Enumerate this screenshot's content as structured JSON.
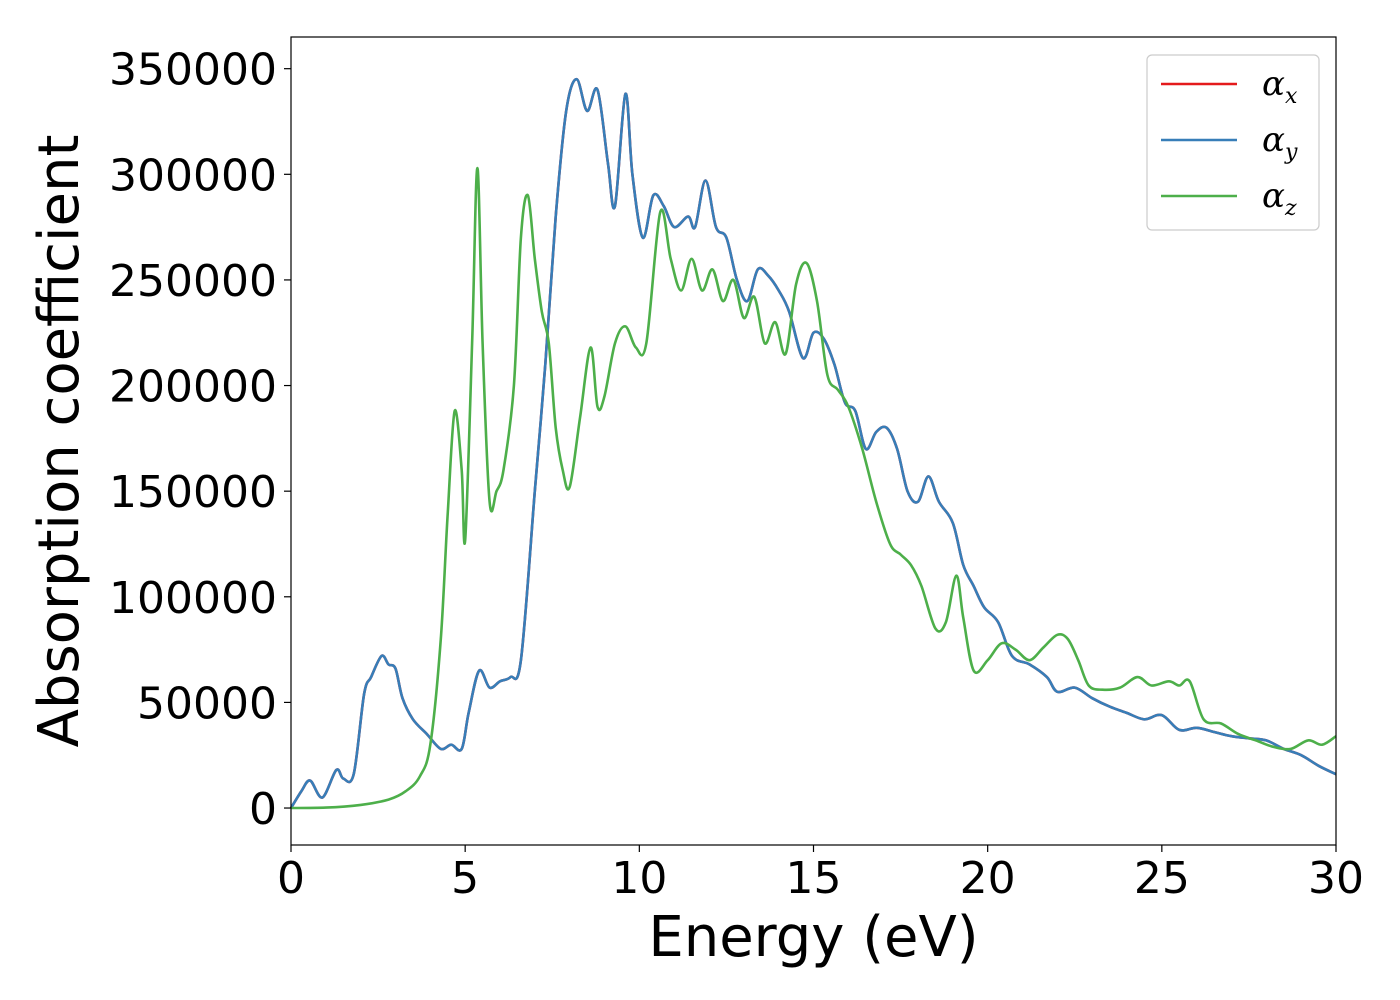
{
  "chart_data": {
    "type": "line",
    "title": "",
    "xlabel": "Energy (eV)",
    "ylabel": "Absorption coefficient",
    "xlim": [
      0,
      30
    ],
    "ylim": [
      -17500,
      365000
    ],
    "xticks": [
      0,
      5,
      10,
      15,
      20,
      25,
      30
    ],
    "yticks": [
      0,
      50000,
      100000,
      150000,
      200000,
      250000,
      300000,
      350000
    ],
    "grid": false,
    "legend_position": "top-right",
    "series": [
      {
        "name": "αx",
        "symbol": "α",
        "subscript": "x",
        "color": "#e41a1c",
        "x": [
          0,
          0.3,
          0.55,
          0.9,
          1.3,
          1.5,
          1.8,
          2.1,
          2.3,
          2.6,
          2.8,
          3.0,
          3.2,
          3.5,
          3.9,
          4.3,
          4.6,
          4.9,
          5.1,
          5.4,
          5.7,
          6.0,
          6.3,
          6.6,
          7.0,
          7.3,
          7.6,
          7.9,
          8.2,
          8.5,
          8.8,
          9.1,
          9.3,
          9.6,
          9.8,
          10.1,
          10.4,
          10.7,
          11.0,
          11.4,
          11.6,
          11.9,
          12.2,
          12.5,
          12.8,
          13.1,
          13.4,
          13.7,
          14.0,
          14.3,
          14.7,
          15.0,
          15.3,
          15.6,
          15.9,
          16.2,
          16.5,
          16.8,
          17.1,
          17.4,
          17.7,
          18.0,
          18.3,
          18.6,
          19.0,
          19.3,
          19.6,
          19.9,
          20.3,
          20.7,
          21.2,
          21.7,
          22.0,
          22.5,
          23.0,
          23.5,
          24.0,
          24.5,
          25.0,
          25.5,
          26.0,
          26.5,
          27.0,
          27.5,
          28.0,
          28.5,
          29.0,
          29.5,
          30.0
        ],
        "y": [
          0,
          8000,
          13000,
          5000,
          18000,
          14000,
          16000,
          54000,
          62000,
          72000,
          68000,
          66000,
          52000,
          42000,
          35000,
          28000,
          30000,
          28000,
          45000,
          65000,
          57000,
          60000,
          62000,
          70000,
          150000,
          210000,
          280000,
          330000,
          345000,
          330000,
          340000,
          305000,
          285000,
          338000,
          300000,
          270000,
          290000,
          285000,
          275000,
          280000,
          275000,
          297000,
          275000,
          270000,
          250000,
          240000,
          255000,
          252000,
          245000,
          235000,
          213000,
          225000,
          222000,
          210000,
          192000,
          188000,
          170000,
          178000,
          180000,
          170000,
          150000,
          145000,
          157000,
          145000,
          135000,
          115000,
          105000,
          95000,
          88000,
          72000,
          68000,
          62000,
          55000,
          57000,
          52000,
          48000,
          45000,
          42000,
          44000,
          37000,
          38000,
          36000,
          34000,
          33000,
          32000,
          28000,
          25000,
          20000,
          16000
        ]
      },
      {
        "name": "αy",
        "symbol": "α",
        "subscript": "y",
        "color": "#377eb8",
        "x": [
          0,
          0.3,
          0.55,
          0.9,
          1.3,
          1.5,
          1.8,
          2.1,
          2.3,
          2.6,
          2.8,
          3.0,
          3.2,
          3.5,
          3.9,
          4.3,
          4.6,
          4.9,
          5.1,
          5.4,
          5.7,
          6.0,
          6.3,
          6.6,
          7.0,
          7.3,
          7.6,
          7.9,
          8.2,
          8.5,
          8.8,
          9.1,
          9.3,
          9.6,
          9.8,
          10.1,
          10.4,
          10.7,
          11.0,
          11.4,
          11.6,
          11.9,
          12.2,
          12.5,
          12.8,
          13.1,
          13.4,
          13.7,
          14.0,
          14.3,
          14.7,
          15.0,
          15.3,
          15.6,
          15.9,
          16.2,
          16.5,
          16.8,
          17.1,
          17.4,
          17.7,
          18.0,
          18.3,
          18.6,
          19.0,
          19.3,
          19.6,
          19.9,
          20.3,
          20.7,
          21.2,
          21.7,
          22.0,
          22.5,
          23.0,
          23.5,
          24.0,
          24.5,
          25.0,
          25.5,
          26.0,
          26.5,
          27.0,
          27.5,
          28.0,
          28.5,
          29.0,
          29.5,
          30.0
        ],
        "y": [
          0,
          8000,
          13000,
          5000,
          18000,
          14000,
          16000,
          54000,
          62000,
          72000,
          68000,
          66000,
          52000,
          42000,
          35000,
          28000,
          30000,
          28000,
          45000,
          65000,
          57000,
          60000,
          62000,
          70000,
          150000,
          210000,
          280000,
          330000,
          345000,
          330000,
          340000,
          305000,
          285000,
          338000,
          300000,
          270000,
          290000,
          285000,
          275000,
          280000,
          275000,
          297000,
          275000,
          270000,
          250000,
          240000,
          255000,
          252000,
          245000,
          235000,
          213000,
          225000,
          222000,
          210000,
          192000,
          188000,
          170000,
          178000,
          180000,
          170000,
          150000,
          145000,
          157000,
          145000,
          135000,
          115000,
          105000,
          95000,
          88000,
          72000,
          68000,
          62000,
          55000,
          57000,
          52000,
          48000,
          45000,
          42000,
          44000,
          37000,
          38000,
          36000,
          34000,
          33000,
          32000,
          28000,
          25000,
          20000,
          16000
        ]
      },
      {
        "name": "αz",
        "symbol": "α",
        "subscript": "z",
        "color": "#4daf4a",
        "x": [
          0,
          1.0,
          2.0,
          2.8,
          3.3,
          3.7,
          4.0,
          4.3,
          4.5,
          4.7,
          4.9,
          5.0,
          5.2,
          5.35,
          5.5,
          5.7,
          5.9,
          6.1,
          6.4,
          6.6,
          6.8,
          7.0,
          7.2,
          7.4,
          7.6,
          7.8,
          8.0,
          8.3,
          8.6,
          8.8,
          9.0,
          9.3,
          9.6,
          9.9,
          10.2,
          10.6,
          10.9,
          11.2,
          11.5,
          11.8,
          12.1,
          12.4,
          12.7,
          13.0,
          13.3,
          13.6,
          13.9,
          14.2,
          14.5,
          14.8,
          15.1,
          15.4,
          15.7,
          16.0,
          16.4,
          16.8,
          17.2,
          17.5,
          17.8,
          18.1,
          18.5,
          18.8,
          19.1,
          19.3,
          19.6,
          20.0,
          20.4,
          20.8,
          21.2,
          21.6,
          22.0,
          22.3,
          22.6,
          22.9,
          23.3,
          23.8,
          24.3,
          24.7,
          25.2,
          25.5,
          25.8,
          26.2,
          26.7,
          27.2,
          27.7,
          28.2,
          28.7,
          29.2,
          29.6,
          30.0
        ],
        "y": [
          0,
          200,
          1500,
          4000,
          8000,
          15000,
          30000,
          80000,
          140000,
          188000,
          160000,
          127000,
          220000,
          303000,
          220000,
          145000,
          150000,
          160000,
          200000,
          270000,
          290000,
          260000,
          235000,
          220000,
          180000,
          160000,
          152000,
          185000,
          218000,
          190000,
          195000,
          220000,
          228000,
          218000,
          220000,
          282000,
          260000,
          245000,
          260000,
          245000,
          255000,
          240000,
          250000,
          232000,
          242000,
          220000,
          230000,
          215000,
          248000,
          258000,
          240000,
          205000,
          198000,
          190000,
          170000,
          145000,
          125000,
          120000,
          115000,
          105000,
          85000,
          88000,
          110000,
          90000,
          65000,
          70000,
          78000,
          75000,
          70000,
          76000,
          82000,
          80000,
          70000,
          58000,
          56000,
          57000,
          62000,
          58000,
          60000,
          58000,
          60000,
          42000,
          40000,
          35000,
          32000,
          29000,
          28000,
          32000,
          30000,
          34000
        ]
      }
    ]
  }
}
